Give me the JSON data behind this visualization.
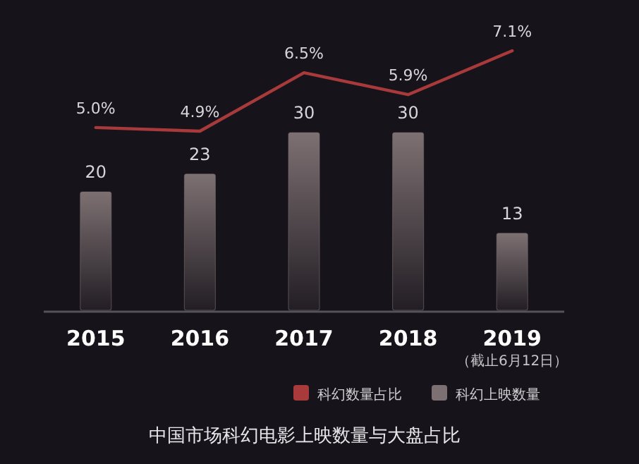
{
  "chart_data": {
    "type": "bar",
    "title": "中国市场科幻电影上映数量与大盘占比",
    "categories": [
      "2015",
      "2016",
      "2017",
      "2018",
      "2019"
    ],
    "series": [
      {
        "name": "科幻数量占比",
        "type": "line",
        "axis": "y2",
        "color": "#a83a3c",
        "values": [
          5.0,
          4.9,
          6.5,
          5.9,
          7.1
        ],
        "value_labels": [
          "5.0%",
          "4.9%",
          "6.5%",
          "5.9%",
          "7.1%"
        ]
      },
      {
        "name": "科幻上映数量",
        "color": "#7d7072",
        "values": [
          20,
          23,
          30,
          30,
          13
        ]
      }
    ],
    "annotations": [
      "（截止6月12日）"
    ],
    "data_labels": true,
    "legend": "bottom"
  }
}
